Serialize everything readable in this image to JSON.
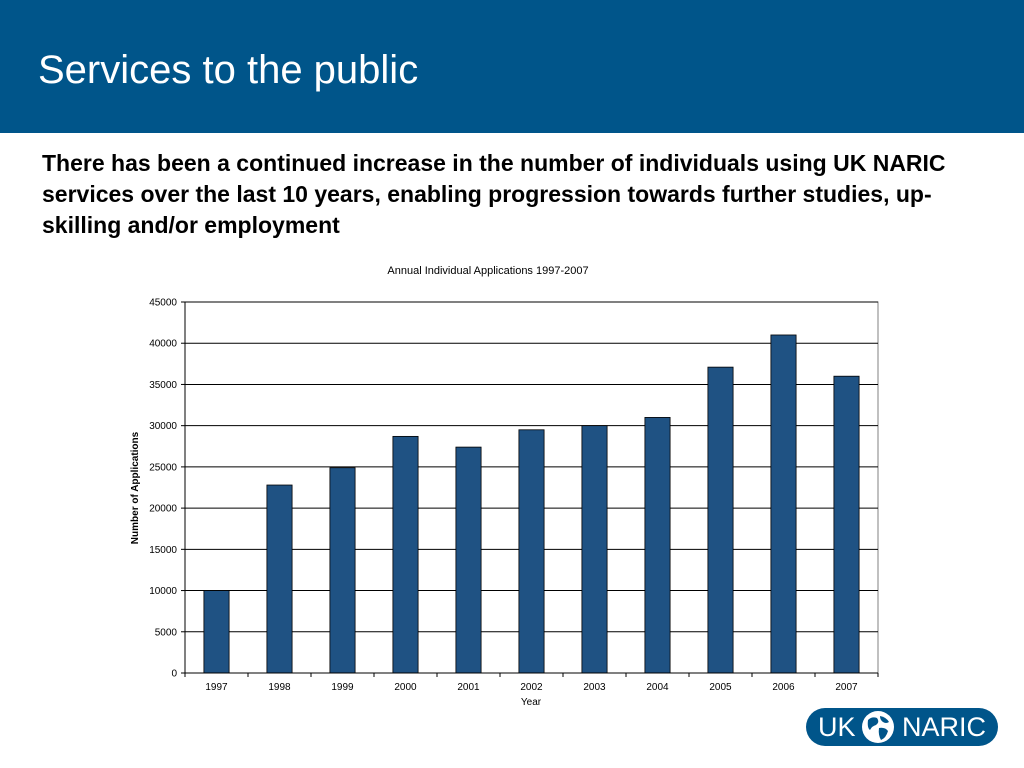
{
  "slide": {
    "title": "Services to the public",
    "subtitle": "There has been a continued increase in the number of individuals using UK NARIC services over the last 10 years, enabling progression towards further studies, up-skilling and/or employment"
  },
  "logo": {
    "left_text": "UK",
    "right_text": "NARIC",
    "brand_color": "#00558a",
    "icon": "globe-icon"
  },
  "chart_data": {
    "type": "bar",
    "title": "Annual Individual Applications 1997-2007",
    "xlabel": "Year",
    "ylabel": "Number of Applications",
    "categories": [
      "1997",
      "1998",
      "1999",
      "2000",
      "2001",
      "2002",
      "2003",
      "2004",
      "2005",
      "2006",
      "2007"
    ],
    "values": [
      10000,
      22800,
      24900,
      28700,
      27400,
      29500,
      30000,
      31000,
      37100,
      41000,
      36000
    ],
    "ylim": [
      0,
      45000
    ],
    "yticks": [
      0,
      5000,
      10000,
      15000,
      20000,
      25000,
      30000,
      35000,
      40000,
      45000
    ],
    "grid": true,
    "legend": "none",
    "bar_color": "#1f5283"
  }
}
